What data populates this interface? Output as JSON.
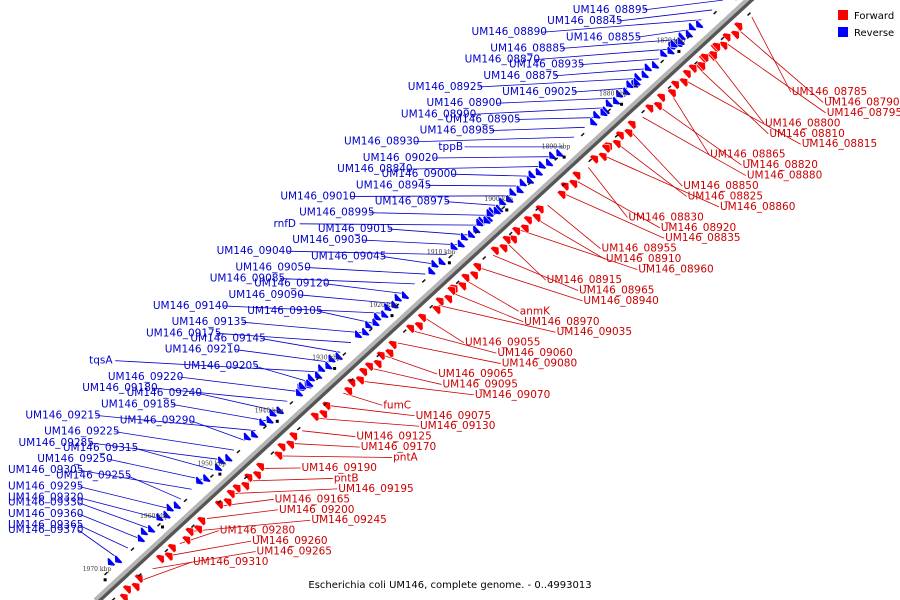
{
  "caption": "Escherichia coli UM146, complete genome. - 0..4993013",
  "legend": {
    "forward": {
      "label": "Forward",
      "color": "#ff0000"
    },
    "reverse": {
      "label": "Reverse",
      "color": "#0000ff"
    }
  },
  "colors": {
    "forward": "#ff0000",
    "reverse": "#0000ff",
    "forward_line": "#cc0000",
    "reverse_line": "#0000cc",
    "backbone": "#999999"
  },
  "kbp_ticks": [
    "1860 kbp",
    "1870 kbp",
    "1880 kbp",
    "1890 kbp",
    "1900 kbp",
    "1910 kbp",
    "1920 kbp",
    "1930 kbp",
    "1940 kbp",
    "1950 kbp",
    "1960 kbp",
    "1970 kbp"
  ],
  "reverse_labels": [
    "UM146_08895",
    "UM146_08845",
    "UM146_08890",
    "UM146_08855",
    "UM146_08885",
    "UM146_08870",
    "UM146_08935",
    "UM146_08875",
    "UM146_08925",
    "UM146_09025",
    "UM146_08900",
    "UM146_08990",
    "UM146_08905",
    "UM146_08985",
    "UM146_08930",
    "tppB",
    "UM146_09020",
    "UM146_08840",
    "UM146_09000",
    "UM146_08945",
    "UM146_09010",
    "UM146_08975",
    "UM146_08995",
    "rnfD",
    "UM146_09015",
    "UM146_09030",
    "UM146_09040",
    "UM146_09045",
    "UM146_09050",
    "UM146_09085",
    "UM146_09120",
    "UM146_09090",
    "UM146_09140",
    "UM146_09105",
    "UM146_09135",
    "UM146_09175",
    "UM146_09145",
    "UM146_09210",
    "tqsA",
    "UM146_09205",
    "UM146_09220",
    "UM146_09180",
    "UM146_09240",
    "UM146_09185",
    "UM146_09215",
    "UM146_09290",
    "UM146_09225",
    "UM146_09285",
    "UM146_09315",
    "UM146_09250",
    "UM146_09305",
    "UM146_09255",
    "UM146_09295",
    "UM146_09320",
    "UM146_09330",
    "UM146_09360",
    "UM146_09365",
    "UM146_09370"
  ],
  "forward_labels": [
    "UM146_08785",
    "UM146_08790",
    "UM146_08795",
    "UM146_08800",
    "UM146_08810",
    "UM146_08815",
    "UM146_08865",
    "UM146_08820",
    "UM146_08880",
    "UM146_08850",
    "UM146_08825",
    "UM146_08860",
    "UM146_08830",
    "UM146_08920",
    "UM146_08835",
    "UM146_08955",
    "UM146_08910",
    "UM146_08960",
    "UM146_08915",
    "UM146_08965",
    "UM146_08940",
    "anmK",
    "UM146_08970",
    "UM146_09035",
    "UM146_09055",
    "UM146_09060",
    "UM146_09080",
    "UM146_09065",
    "UM146_09095",
    "UM146_09070",
    "fumC",
    "UM146_09075",
    "UM146_09130",
    "UM146_09125",
    "UM146_09170",
    "pntA",
    "UM146_09190",
    "pntB",
    "UM146_09195",
    "UM146_09165",
    "UM146_09200",
    "UM146_09245",
    "UM146_09280",
    "UM146_09260",
    "UM146_09265",
    "UM146_09310"
  ]
}
